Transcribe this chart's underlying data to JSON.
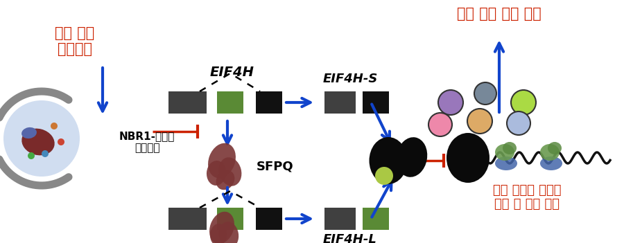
{
  "bg_color": "#ffffff",
  "red_color": "#cc2200",
  "blue_color": "#1144cc",
  "dark_gray": "#404040",
  "black_rect": "#111111",
  "green_exon": "#5a8a35",
  "brown_protein": "#7a3535",
  "title_top_left": "세포 노화\n스트레스",
  "title_top_right": "노화 연관 염증 반응",
  "label_nbr1": "NBR1-선택적\n오토파지",
  "label_sfpq": "SFPQ",
  "label_eif4h": "EIF4H",
  "label_eif4hs": "EIF4H-S",
  "label_eif4hl": "EIF4H-L",
  "label_bottom_right": "염증 인자의 단백질\n번역 및 생산 증가",
  "circle_colors": [
    "#9977bb",
    "#778899",
    "#aada44",
    "#ee88aa",
    "#ddaa66",
    "#aabbdd"
  ],
  "figsize": [
    9.0,
    3.51
  ],
  "dpi": 100
}
